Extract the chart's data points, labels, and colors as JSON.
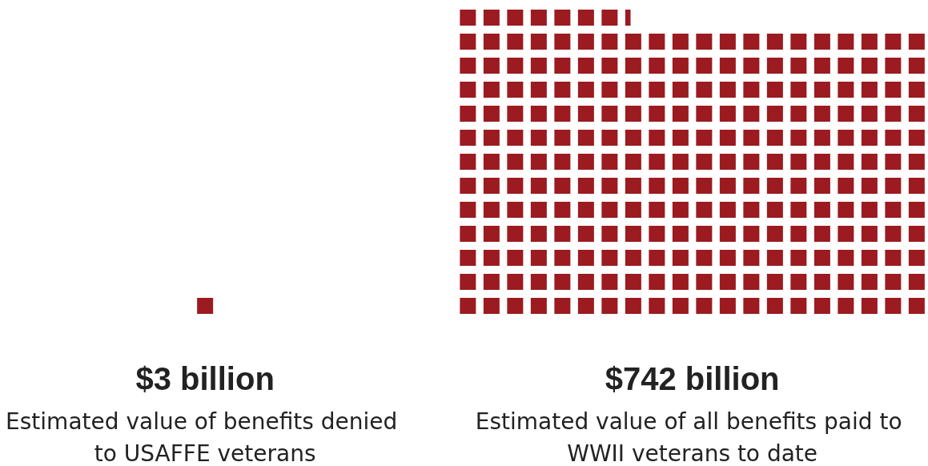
{
  "chart_data": {
    "type": "other",
    "categories": [
      "Estimated value of benefits denied to USAFFE veterans",
      "Estimated value of all benefits paid to WWII veterans to date"
    ],
    "values": [
      3,
      742
    ],
    "value_labels": [
      "$3 billion",
      "$742 billion"
    ],
    "color": "#9b1b20"
  }
}
